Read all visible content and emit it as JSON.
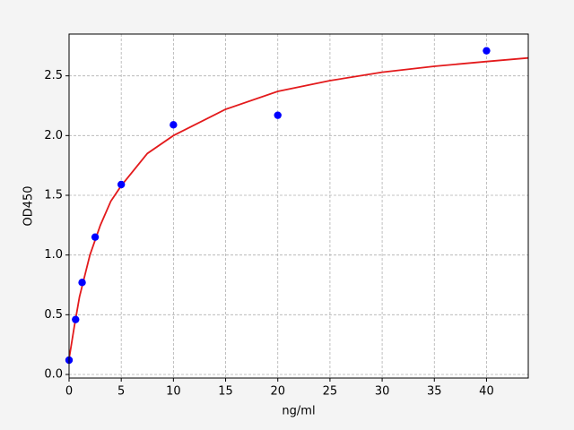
{
  "chart_data": {
    "type": "scatter",
    "xlabel": "ng/ml",
    "ylabel": "OD450",
    "xlim": [
      0,
      44
    ],
    "ylim": [
      -0.03,
      2.85
    ],
    "xticks": [
      0,
      5,
      10,
      15,
      20,
      25,
      30,
      35,
      40
    ],
    "yticks": [
      {
        "value": 0,
        "label": "0.0"
      },
      0.5,
      {
        "value": 1,
        "label": "1.0"
      },
      1.5,
      {
        "value": 2,
        "label": "2.0"
      },
      2.5
    ],
    "grid": true,
    "series": [
      {
        "mode": "markers",
        "color": "#0000ff",
        "x": [
          0,
          0.625,
          1.25,
          2.5,
          5,
          10,
          20,
          40
        ],
        "values": [
          0.12,
          0.46,
          0.77,
          1.15,
          1.59,
          2.09,
          2.17,
          2.71
        ]
      },
      {
        "mode": "line",
        "color": "#e31a1c",
        "x": [
          0,
          0.5,
          1,
          2,
          3,
          4,
          5,
          7.5,
          10,
          15,
          20,
          25,
          30,
          35,
          40,
          44
        ],
        "values": [
          0.13,
          0.4,
          0.65,
          1.0,
          1.25,
          1.45,
          1.58,
          1.85,
          2.0,
          2.22,
          2.37,
          2.46,
          2.53,
          2.58,
          2.62,
          2.65
        ]
      }
    ]
  }
}
